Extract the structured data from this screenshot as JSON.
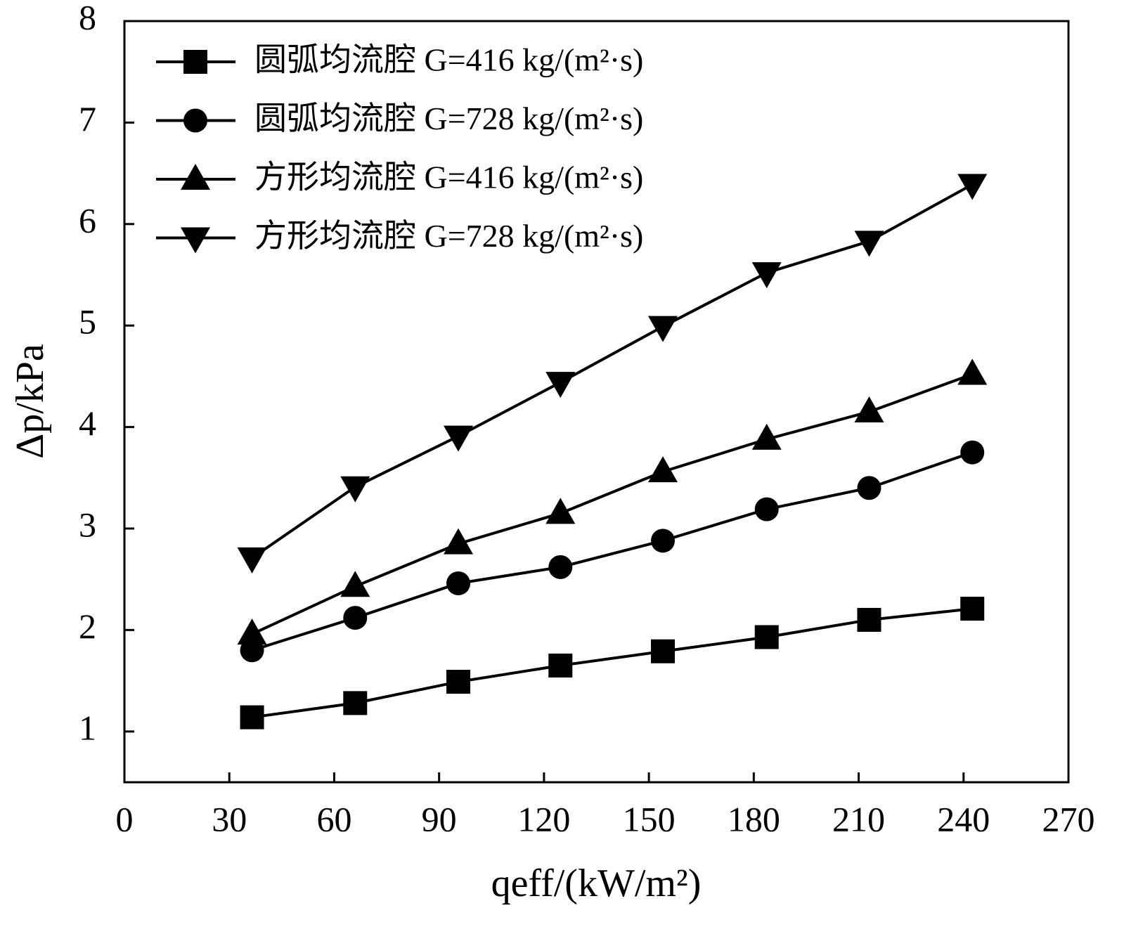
{
  "chart_data": {
    "type": "line",
    "xlabel": "qeff/(kW/m²)",
    "ylabel": "Δp/kPa",
    "x": [
      36.5,
      66,
      95.5,
      124.7,
      154,
      183.7,
      213,
      242.5
    ],
    "series": [
      {
        "name": "圆弧均流腔 G=416 kg/(m²·s)",
        "color": "#000000",
        "marker": "square",
        "values": [
          1.14,
          1.28,
          1.49,
          1.65,
          1.79,
          1.93,
          2.1,
          2.21
        ]
      },
      {
        "name": "圆弧均流腔 G=728 kg/(m²·s)",
        "color": "#000000",
        "marker": "circle",
        "values": [
          1.8,
          2.12,
          2.46,
          2.62,
          2.88,
          3.19,
          3.4,
          3.75
        ]
      },
      {
        "name": "方形均流腔 G=416 kg/(m²·s)",
        "color": "#000000",
        "marker": "triangle-up",
        "values": [
          1.96,
          2.43,
          2.85,
          3.15,
          3.56,
          3.88,
          4.15,
          4.52
        ]
      },
      {
        "name": "方形均流腔 G=728 kg/(m²·s)",
        "color": "#000000",
        "marker": "triangle-down",
        "values": [
          2.71,
          3.41,
          3.91,
          4.44,
          4.99,
          5.52,
          5.83,
          6.39
        ]
      }
    ],
    "xlim": [
      0,
      270
    ],
    "xticks": [
      0,
      30,
      60,
      90,
      120,
      150,
      180,
      210,
      240,
      270
    ],
    "ylim": [
      0.5,
      8
    ],
    "yticks": [
      1,
      2,
      3,
      4,
      5,
      6,
      7,
      8
    ],
    "legend": "upper left",
    "grid": false
  }
}
